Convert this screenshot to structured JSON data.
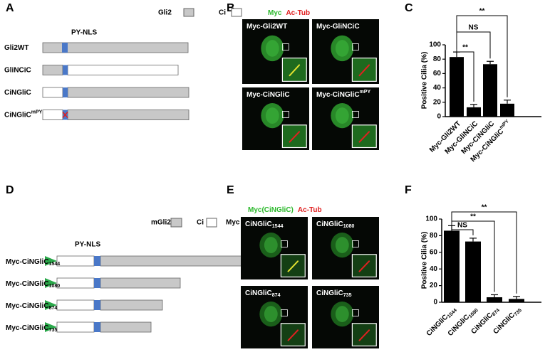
{
  "chart_data": [
    {
      "type": "bar",
      "y_label": "Positive Cilia (%)",
      "categories": [
        "Myc-Gli2WT",
        "Myc-GliNCiC",
        "Myc-CiNGliC",
        "Myc-CiNGliC"
      ],
      "category_superscripts": {
        "3": "mPY"
      },
      "values": [
        83,
        13,
        73,
        18
      ],
      "errors": [
        7,
        4,
        4,
        5
      ],
      "color": "#000000",
      "ylim": [
        0,
        100
      ],
      "yticks": [
        0,
        20,
        40,
        60,
        80,
        100
      ],
      "annotations": [
        "**",
        "NS",
        "**"
      ]
    },
    {
      "type": "bar",
      "y_label": "Positive Cilia (%)",
      "categories": [
        "CiNGliC",
        "CiNGliC",
        "CiNGliC",
        "CiNGliC"
      ],
      "category_subscripts": [
        "1544",
        "1080",
        "874",
        "735"
      ],
      "values": [
        86,
        73,
        6,
        4
      ],
      "errors": [
        6,
        4,
        3,
        3
      ],
      "color": "#000000",
      "ylim": [
        0,
        100
      ],
      "yticks": [
        0,
        20,
        40,
        60,
        80,
        100
      ],
      "annotations": [
        "**",
        "**",
        "NS"
      ]
    }
  ],
  "panels": {
    "A": {
      "label": "A",
      "legend": [
        "Gli2",
        "Ci"
      ],
      "motif": "PY-NLS",
      "constructs": [
        {
          "name": "Gli2WT"
        },
        {
          "name": "GliNCiC"
        },
        {
          "name": "CiNGliC"
        },
        {
          "name": "CiNGliC",
          "sup": "mPY"
        }
      ]
    },
    "B": {
      "label": "B",
      "stain": [
        "Myc",
        "Ac-Tub"
      ],
      "images": [
        {
          "name": "Myc-Gli2WT"
        },
        {
          "name": "Myc-GliNCiC"
        },
        {
          "name": "Myc-CiNGliC"
        },
        {
          "name": "Myc-CiNGliC",
          "sup": "mPY"
        }
      ]
    },
    "C": {
      "label": "C"
    },
    "D": {
      "label": "D",
      "legend": [
        "mGli2",
        "Ci",
        "Myc"
      ],
      "motif": "PY-NLS",
      "constructs": [
        {
          "name": "Myc-CiNGliC",
          "sub": "1544"
        },
        {
          "name": "Myc-CiNGliC",
          "sub": "1080"
        },
        {
          "name": "Myc-CiNGliC",
          "sub": "874"
        },
        {
          "name": "Myc-CiNGliC",
          "sub": "735"
        }
      ]
    },
    "E": {
      "label": "E",
      "stain": [
        "Myc(CiNGliC)",
        "Ac-Tub"
      ],
      "images": [
        {
          "name": "CiNGliC",
          "sub": "1544"
        },
        {
          "name": "CiNGliC",
          "sub": "1080"
        },
        {
          "name": "CiNGliC",
          "sub": "874"
        },
        {
          "name": "CiNGliC",
          "sub": "735"
        }
      ]
    },
    "F": {
      "label": "F"
    }
  }
}
